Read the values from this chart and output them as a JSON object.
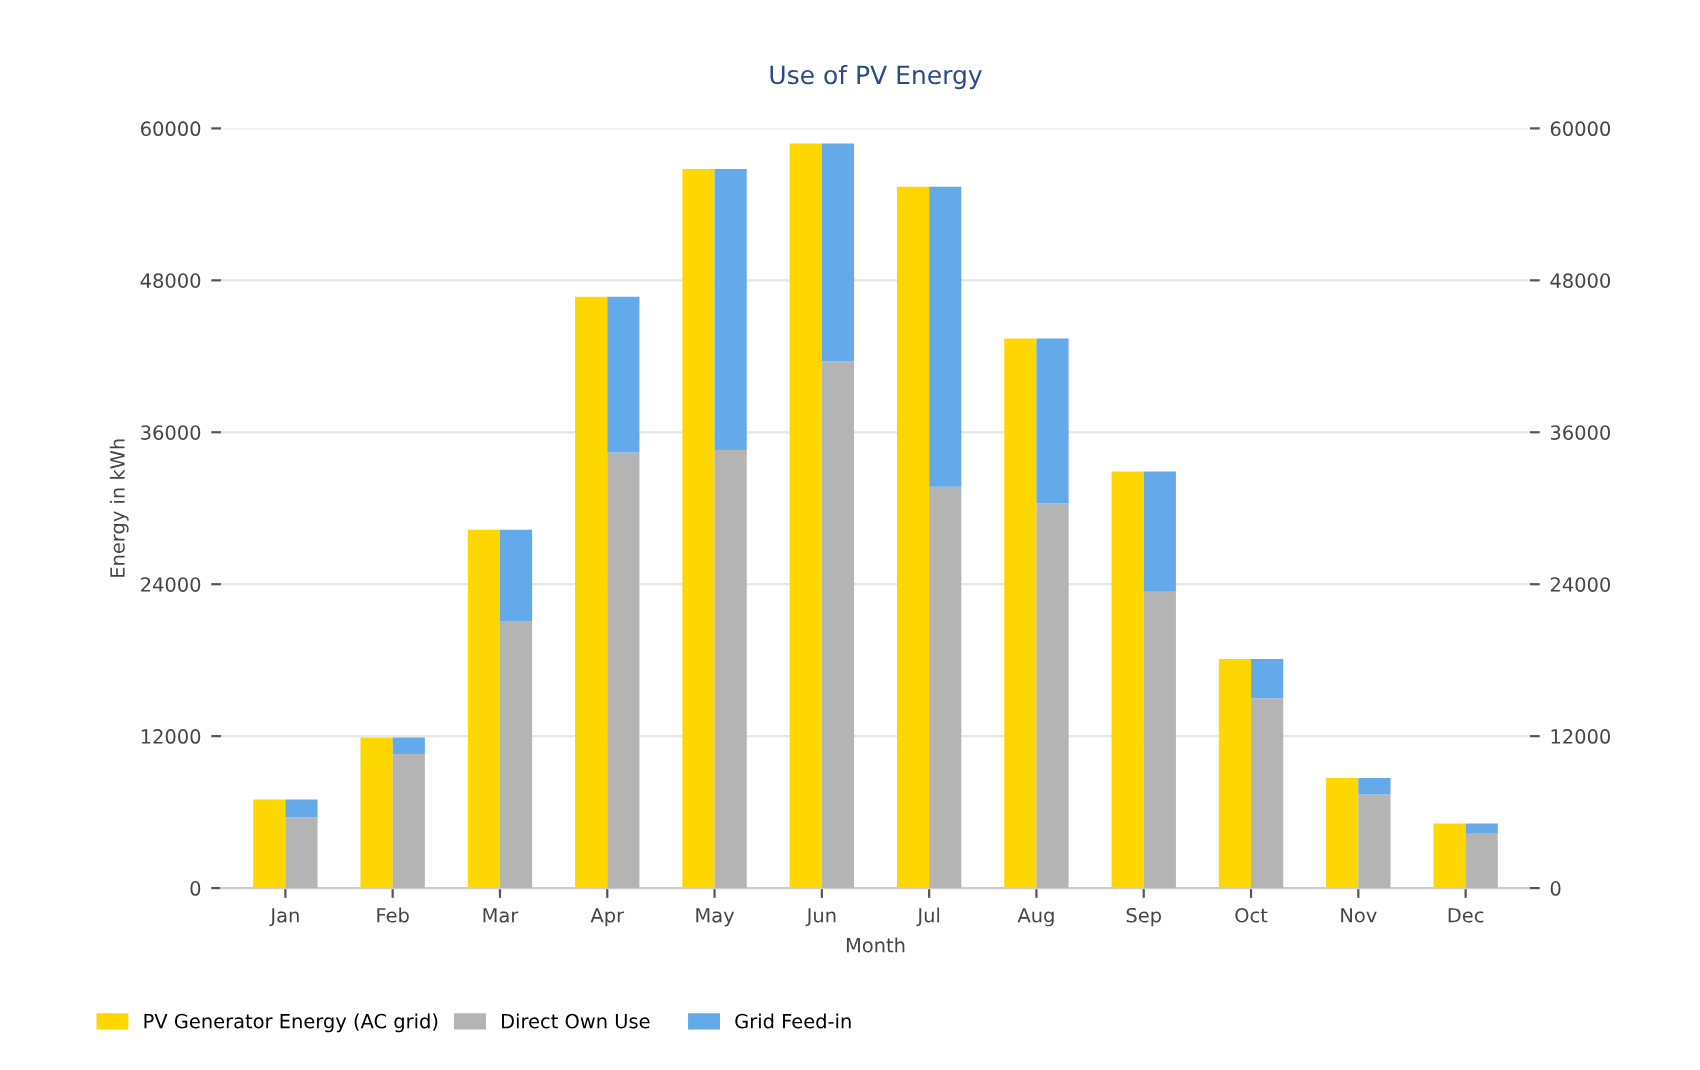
{
  "chart_data": [
    {
      "type": "bar",
      "title": "Use of PV Energy",
      "xlabel": "Month",
      "ylabel": "Energy in kWh",
      "categories": [
        "Jan",
        "Feb",
        "Mar",
        "Apr",
        "May",
        "Jun",
        "Jul",
        "Aug",
        "Sep",
        "Oct",
        "Nov",
        "Dec"
      ],
      "series": [
        {
          "name": "PV Generator Energy (AC grid)",
          "color": "#ffd700",
          "values": [
            7000,
            11900,
            28300,
            46700,
            56800,
            58800,
            55400,
            43400,
            32900,
            18100,
            8700,
            5100
          ]
        }
      ],
      "ylim": [
        0,
        60000
      ],
      "yticks": [
        0,
        12000,
        24000,
        36000,
        48000,
        60000
      ],
      "grid": "y",
      "legend": "bottom left"
    },
    {
      "type": "bar",
      "stacked": true,
      "categories": [
        null,
        null,
        null,
        null,
        null,
        null,
        null,
        null,
        null,
        null,
        null,
        null
      ],
      "series": [
        {
          "name": "Direct Own Use",
          "color": "#b4b4b4",
          "values": [
            5600,
            10600,
            21100,
            34400,
            34600,
            41600,
            31700,
            30400,
            23400,
            15000,
            7400,
            4300
          ]
        },
        {
          "name": "Grid Feed-in",
          "color": "#64aaeb",
          "values": [
            1400,
            1300,
            7200,
            12300,
            22200,
            17200,
            23700,
            13000,
            9500,
            3100,
            1300,
            800
          ]
        }
      ],
      "ylim": [
        0,
        60000
      ],
      "yticks": [
        0,
        12000,
        24000,
        36000,
        48000,
        60000
      ],
      "tick_labels": "y",
      "legend": "bottom left"
    }
  ]
}
